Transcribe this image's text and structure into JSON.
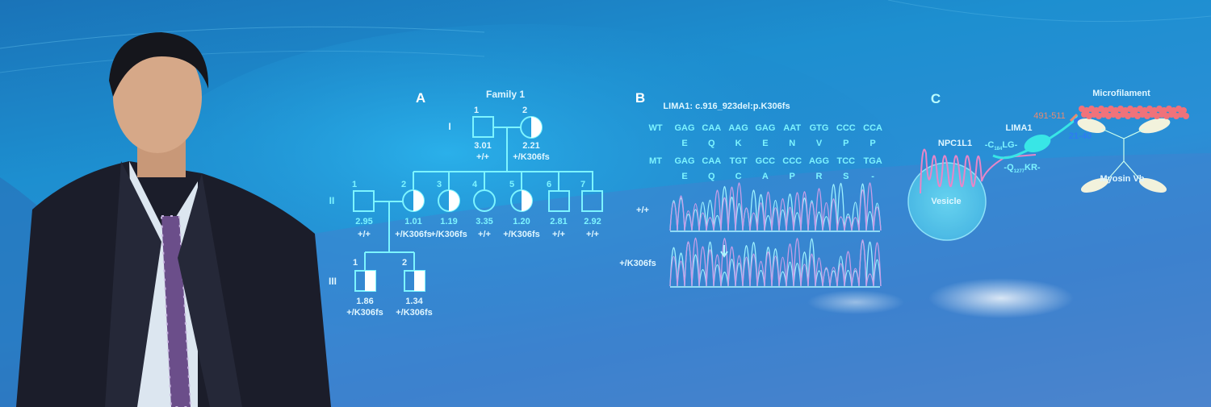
{
  "panel_a": {
    "letter": "A",
    "title": "Family 1",
    "generations": [
      "I",
      "II",
      "III"
    ],
    "gen1": [
      {
        "num": "1",
        "value": "3.01",
        "genotype": "+/+"
      },
      {
        "num": "2",
        "value": "2.21",
        "genotype": "+/K306fs"
      }
    ],
    "gen2": [
      {
        "num": "1",
        "value": "2.95",
        "genotype": "+/+"
      },
      {
        "num": "2",
        "value": "1.01",
        "genotype": "+/K306fs"
      },
      {
        "num": "3",
        "value": "1.19",
        "genotype": "+/K306fs"
      },
      {
        "num": "4",
        "value": "3.35",
        "genotype": "+/+"
      },
      {
        "num": "5",
        "value": "1.20",
        "genotype": "+/K306fs"
      },
      {
        "num": "6",
        "value": "2.81",
        "genotype": "+/+"
      },
      {
        "num": "7",
        "value": "2.92",
        "genotype": "+/+"
      }
    ],
    "gen3": [
      {
        "num": "1",
        "value": "1.86",
        "genotype": "+/K306fs"
      },
      {
        "num": "2",
        "value": "1.34",
        "genotype": "+/K306fs"
      }
    ]
  },
  "panel_b": {
    "letter": "B",
    "title": "LIMA1: c.916_923del:p.K306fs",
    "wt_label": "WT",
    "wt_codons": [
      "GAG",
      "CAA",
      "AAG",
      "GAG",
      "AAT",
      "GTG",
      "CCC",
      "CCA"
    ],
    "wt_aa": [
      "E",
      "Q",
      "K",
      "E",
      "N",
      "V",
      "P",
      "P"
    ],
    "mt_label": "MT",
    "mt_codons": [
      "GAG",
      "CAA",
      "TGT",
      "GCC",
      "CCC",
      "AGG",
      "TCC",
      "TGA"
    ],
    "mt_aa": [
      "E",
      "Q",
      "C",
      "A",
      "P",
      "R",
      "S",
      "-"
    ],
    "trace_labels": [
      "+/+",
      "+/K306fs"
    ]
  },
  "panel_c": {
    "letter": "C",
    "npc1l1": "NPC1L1",
    "vesicle": "Vesicle",
    "lima1": "LIMA1",
    "motif1": "-C",
    "motif1_sub": "184",
    "motif1_end": "LG-",
    "motif2": "-Q",
    "motif2_sub": "1277",
    "motif2_end": "KR-",
    "range1": "491-511",
    "range2": "21-40",
    "microfilament": "Microfilament",
    "myosin": "Myosin Vb"
  },
  "colors": {
    "accent": "#7df4ff",
    "text": "#e6f8ff",
    "pink": "#e86a9a",
    "salmon": "#e88a70",
    "blue_label": "#2e7cf0"
  }
}
